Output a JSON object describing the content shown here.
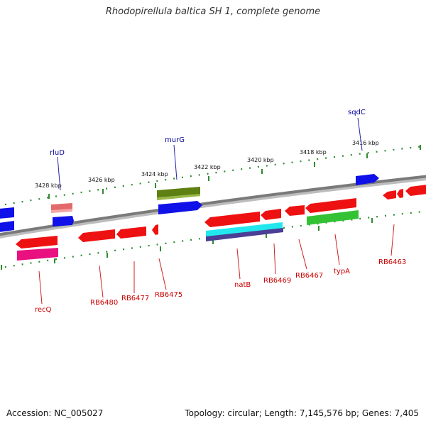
{
  "title": "Rhodopirellula baltica SH 1, complete genome",
  "footer": {
    "accession": "Accession: NC_005027",
    "summary": "Topology: circular; Length: 7,145,576 bp; Genes: 7,405"
  },
  "ruler": {
    "labels": [
      "3428 kbp",
      "3426 kbp",
      "3424 kbp",
      "3422 kbp",
      "3420 kbp",
      "3418 kbp",
      "3416 kbp"
    ]
  },
  "gene_labels": {
    "top": [
      "rluD",
      "murG",
      "sqdC"
    ],
    "bottom": [
      "recQ",
      "RB6480",
      "RB6477",
      "RB6475",
      "natB",
      "RB6469",
      "RB6467",
      "typA",
      "RB6463"
    ]
  },
  "colors": {
    "backbone": "#808080",
    "tick": "#2e8b2e",
    "label_top": "#0000a0",
    "label_bottom": "#c00000",
    "feature_red": "#ff0000",
    "feature_blue": "#0000ff",
    "feature_olive": "#6b8e23",
    "feature_pink": "#f08080",
    "feature_magenta": "#ff1493",
    "feature_cyan": "#00e5ee",
    "feature_purple": "#483d8b",
    "feature_green": "#32cd32"
  }
}
